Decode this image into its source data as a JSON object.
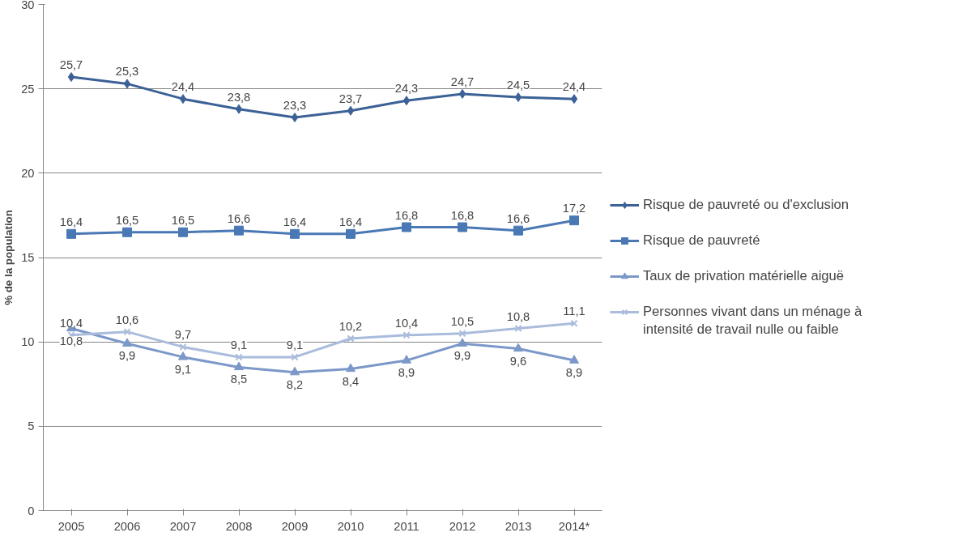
{
  "chart_data": {
    "type": "line",
    "ylabel": "% de la population",
    "categories": [
      "2005",
      "2006",
      "2007",
      "2008",
      "2009",
      "2010",
      "2011",
      "2012",
      "2013",
      "2014*"
    ],
    "series": [
      {
        "name": "Risque de pauvreté ou d'exclusion",
        "color": "#3b6196",
        "marker": "diamond",
        "values": [
          25.7,
          25.3,
          24.4,
          23.8,
          23.3,
          23.7,
          24.3,
          24.7,
          24.5,
          24.4
        ],
        "value_labels": [
          "25,7",
          "25,3",
          "24,4",
          "23,8",
          "23,3",
          "23,7",
          "24,3",
          "24,7",
          "24,5",
          "24,4"
        ]
      },
      {
        "name": "Risque de pauvreté",
        "color": "#4a78b4",
        "marker": "square",
        "values": [
          16.4,
          16.5,
          16.5,
          16.6,
          16.4,
          16.4,
          16.8,
          16.8,
          16.6,
          17.2
        ],
        "value_labels": [
          "16,4",
          "16,5",
          "16,5",
          "16,6",
          "16,4",
          "16,4",
          "16,8",
          "16,8",
          "16,6",
          "17,2"
        ]
      },
      {
        "name": "Taux de privation matérielle aiguë",
        "color": "#7b98c9",
        "marker": "triangle",
        "values": [
          10.8,
          9.9,
          9.1,
          8.5,
          8.2,
          8.4,
          8.9,
          9.9,
          9.6,
          8.9
        ],
        "value_labels": [
          "10,8",
          "9,9",
          "9,1",
          "8,5",
          "8,2",
          "8,4",
          "8,9",
          "9,9",
          "9,6",
          "8,9"
        ]
      },
      {
        "name": "Personnes vivant dans un ménage à intensité de travail nulle ou faible",
        "color": "#aabcdc",
        "marker": "cross",
        "values": [
          10.4,
          10.6,
          9.7,
          9.1,
          9.1,
          10.2,
          10.4,
          10.5,
          10.8,
          11.1
        ],
        "value_labels": [
          "10,4",
          "10,6",
          "9,7",
          "9,1",
          "9,1",
          "10,2",
          "10,4",
          "10,5",
          "10,8",
          "11,1"
        ]
      }
    ],
    "ylim": [
      0,
      30
    ],
    "yticks": [
      0,
      5,
      10,
      15,
      20,
      25,
      30
    ],
    "grid": "y",
    "legend": "right",
    "line_style": "solid"
  }
}
